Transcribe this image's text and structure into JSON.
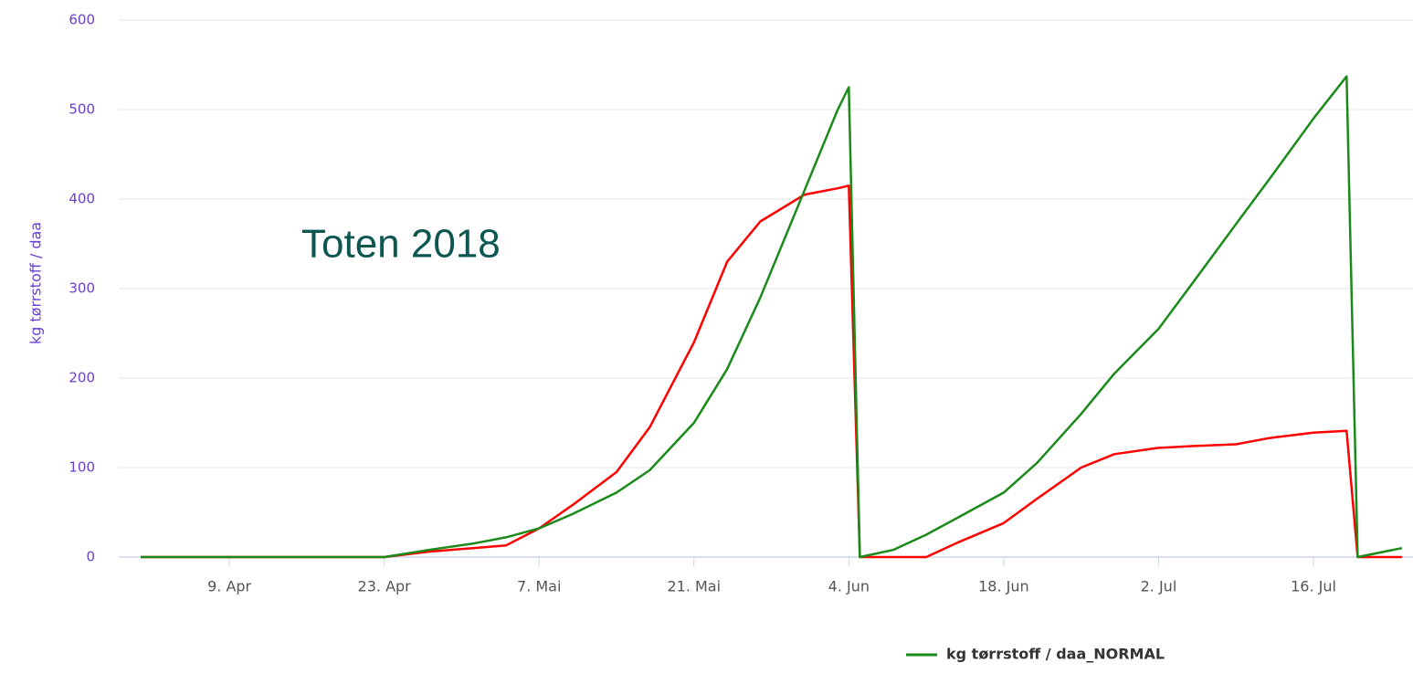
{
  "chart_data": {
    "type": "line",
    "annotation": "Toten 2018",
    "y_label": "kg tørrstoff / daa",
    "x": [
      "04-01",
      "04-23",
      "04-27",
      "05-01",
      "05-04",
      "05-07",
      "05-10",
      "05-14",
      "05-17",
      "05-21",
      "05-24",
      "05-27",
      "05-31",
      "06-03",
      "06-04",
      "06-05",
      "06-08",
      "06-11",
      "06-14",
      "06-18",
      "06-21",
      "06-25",
      "06-28",
      "07-02",
      "07-05",
      "07-09",
      "07-12",
      "07-16",
      "07-19",
      "07-20",
      "07-24"
    ],
    "series": [
      {
        "name": "kg tørrstoff / daa_NORMAL",
        "color": "#1a8a1a",
        "values": [
          0,
          0,
          8,
          15,
          22,
          32,
          48,
          72,
          97,
          150,
          210,
          290,
          410,
          500,
          525,
          0,
          8,
          25,
          45,
          72,
          105,
          160,
          205,
          255,
          305,
          372,
          422,
          490,
          537,
          0,
          10
        ]
      },
      {
        "color": "#ff0000",
        "values": [
          0,
          0,
          6,
          10,
          13,
          32,
          58,
          95,
          145,
          240,
          330,
          375,
          405,
          412,
          415,
          0,
          0,
          0,
          17,
          38,
          65,
          100,
          115,
          122,
          124,
          126,
          133,
          139,
          141,
          0,
          0
        ]
      }
    ],
    "xlim": [
      "03-30",
      "07-25"
    ],
    "xticks": [
      {
        "value": "04-09",
        "label": "9. Apr"
      },
      {
        "value": "04-23",
        "label": "23. Apr"
      },
      {
        "value": "05-07",
        "label": "7. Mai"
      },
      {
        "value": "05-21",
        "label": "21. Mai"
      },
      {
        "value": "06-04",
        "label": "4. Jun"
      },
      {
        "value": "06-18",
        "label": "18. Jun"
      },
      {
        "value": "07-02",
        "label": "2. Jul"
      },
      {
        "value": "07-16",
        "label": "16. Jul"
      }
    ],
    "ylim": [
      0,
      600
    ],
    "yticks": [
      0,
      100,
      200,
      300,
      400,
      500,
      600
    ],
    "grid": true,
    "legend": "bottom-right"
  }
}
